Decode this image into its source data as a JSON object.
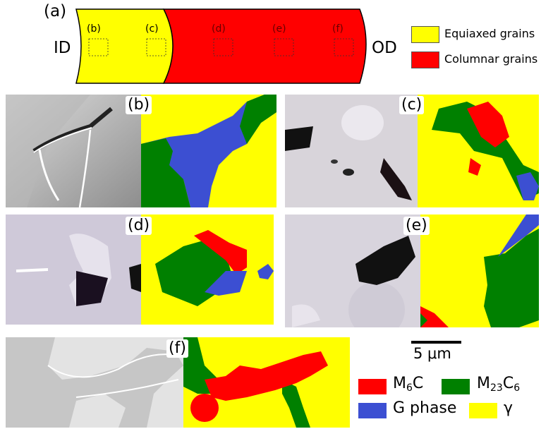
{
  "schematic": {
    "label": "(a)",
    "id_label": "ID",
    "od_label": "OD",
    "markers": [
      "(b)",
      "(c)",
      "(d)",
      "(e)",
      "(f)"
    ]
  },
  "grain_legend": [
    {
      "label": "Equiaxed grains",
      "color": "#ffff00"
    },
    {
      "label": "Columnar grains",
      "color": "#ff0000"
    }
  ],
  "panels": [
    {
      "label": "(b)"
    },
    {
      "label": "(c)"
    },
    {
      "label": "(d)"
    },
    {
      "label": "(e)"
    },
    {
      "label": "(f)"
    }
  ],
  "scale_bar": {
    "label": "5 μm"
  },
  "phase_legend": [
    {
      "label": "M",
      "sub": "6",
      "tail": "C",
      "tailsub": "",
      "color": "#ff0000"
    },
    {
      "label": "M",
      "sub": "23",
      "tail": "C",
      "tailsub": "6",
      "color": "#008000"
    },
    {
      "label": "G phase",
      "sub": "",
      "tail": "",
      "tailsub": "",
      "color": "#3c4fd2"
    },
    {
      "label": "γ",
      "sub": "",
      "tail": "",
      "tailsub": "",
      "color": "#ffff00"
    }
  ]
}
